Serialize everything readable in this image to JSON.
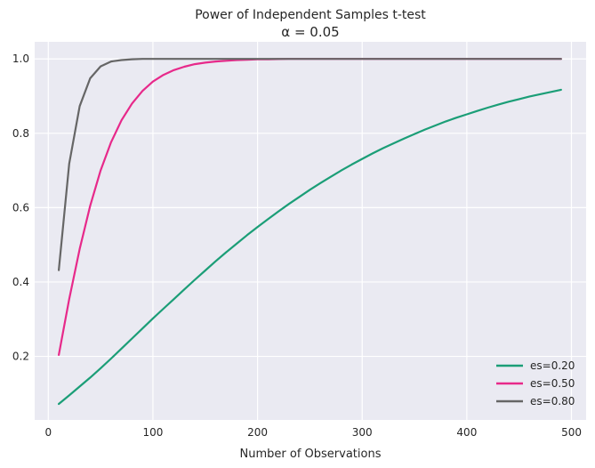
{
  "chart_data": {
    "type": "line",
    "title": "Power of Independent Samples t-test",
    "subtitle": "α = 0.05",
    "xlabel": "Number of Observations",
    "ylabel": "",
    "xlim": [
      -13,
      514
    ],
    "ylim": [
      0.029,
      1.046
    ],
    "xticks": [
      0,
      100,
      200,
      300,
      400,
      500
    ],
    "xtick_labels": [
      "0",
      "100",
      "200",
      "300",
      "400",
      "500"
    ],
    "yticks": [
      0.2,
      0.4,
      0.6,
      0.8,
      1.0
    ],
    "ytick_labels": [
      "0.2",
      "0.4",
      "0.6",
      "0.8",
      "1.0"
    ],
    "grid": true,
    "legend_position": "lower-right",
    "x": [
      10,
      20,
      30,
      40,
      50,
      60,
      70,
      80,
      90,
      100,
      110,
      120,
      130,
      140,
      150,
      160,
      170,
      180,
      190,
      200,
      210,
      220,
      230,
      240,
      250,
      260,
      270,
      280,
      290,
      300,
      310,
      320,
      330,
      340,
      350,
      360,
      370,
      380,
      390,
      400,
      410,
      420,
      430,
      440,
      450,
      460,
      470,
      480,
      490
    ],
    "series": [
      {
        "name": "es=0.20",
        "color": "#1b9e77",
        "values": [
          0.072,
          0.095,
          0.119,
          0.143,
          0.168,
          0.194,
          0.221,
          0.248,
          0.275,
          0.302,
          0.328,
          0.354,
          0.38,
          0.406,
          0.431,
          0.456,
          0.48,
          0.503,
          0.526,
          0.548,
          0.569,
          0.59,
          0.61,
          0.629,
          0.648,
          0.666,
          0.683,
          0.7,
          0.716,
          0.731,
          0.746,
          0.76,
          0.773,
          0.786,
          0.798,
          0.81,
          0.821,
          0.832,
          0.842,
          0.851,
          0.86,
          0.869,
          0.877,
          0.885,
          0.892,
          0.899,
          0.905,
          0.911,
          0.917
        ]
      },
      {
        "name": "es=0.50",
        "color": "#e7298a",
        "values": [
          0.204,
          0.354,
          0.489,
          0.605,
          0.7,
          0.776,
          0.835,
          0.88,
          0.914,
          0.939,
          0.957,
          0.97,
          0.979,
          0.986,
          0.99,
          0.993,
          0.995,
          0.997,
          0.998,
          0.999,
          0.999,
          0.9995,
          1.0,
          1.0,
          1.0,
          1.0,
          1.0,
          1.0,
          1.0,
          1.0,
          1.0,
          1.0,
          1.0,
          1.0,
          1.0,
          1.0,
          1.0,
          1.0,
          1.0,
          1.0,
          1.0,
          1.0,
          1.0,
          1.0,
          1.0,
          1.0,
          1.0,
          1.0,
          1.0
        ]
      },
      {
        "name": "es=0.80",
        "color": "#666666",
        "values": [
          0.432,
          0.718,
          0.873,
          0.948,
          0.98,
          0.993,
          0.997,
          0.999,
          1.0,
          1.0,
          1.0,
          1.0,
          1.0,
          1.0,
          1.0,
          1.0,
          1.0,
          1.0,
          1.0,
          1.0,
          1.0,
          1.0,
          1.0,
          1.0,
          1.0,
          1.0,
          1.0,
          1.0,
          1.0,
          1.0,
          1.0,
          1.0,
          1.0,
          1.0,
          1.0,
          1.0,
          1.0,
          1.0,
          1.0,
          1.0,
          1.0,
          1.0,
          1.0,
          1.0,
          1.0,
          1.0,
          1.0,
          1.0,
          1.0
        ]
      }
    ]
  }
}
